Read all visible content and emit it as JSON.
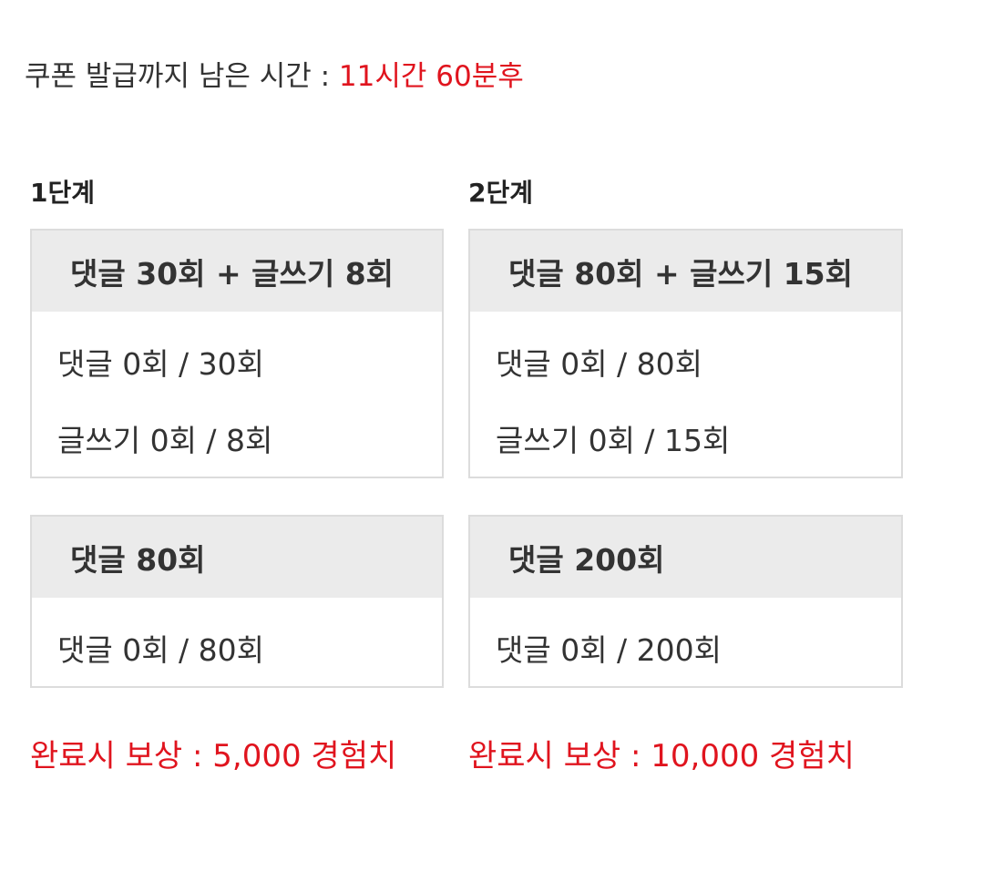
{
  "header": {
    "label": "쿠폰 발급까지 남은 시간 :",
    "time": "11시간 60분후"
  },
  "stages": [
    {
      "title": "1단계",
      "cards": [
        {
          "heading": "댓글 30회 + 글쓰기 8회",
          "rows": [
            "댓글 0회 / 30회",
            "글쓰기 0회 / 8회"
          ]
        },
        {
          "heading": "댓글 80회",
          "rows": [
            "댓글 0회 / 80회"
          ]
        }
      ],
      "reward": "완료시 보상 : 5,000 경험치"
    },
    {
      "title": "2단계",
      "cards": [
        {
          "heading": "댓글 80회 + 글쓰기 15회",
          "rows": [
            "댓글 0회 / 80회",
            "글쓰기 0회 / 15회"
          ]
        },
        {
          "heading": "댓글 200회",
          "rows": [
            "댓글 0회 / 200회"
          ]
        }
      ],
      "reward": "완료시 보상 : 10,000 경험치"
    }
  ]
}
